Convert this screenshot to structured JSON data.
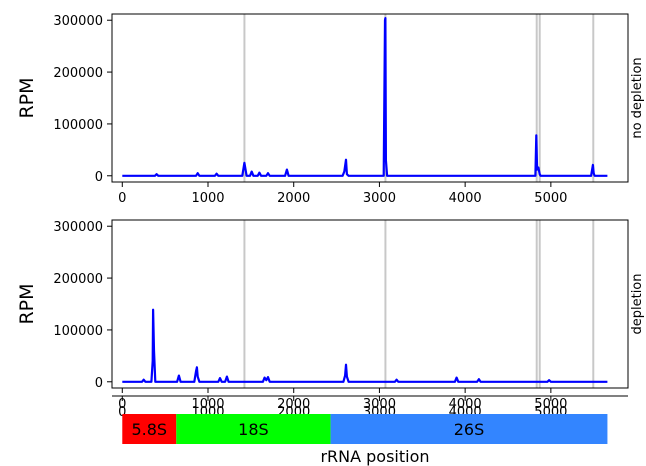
{
  "chart_data": [
    {
      "type": "line",
      "side_label": "no depletion",
      "ylabel": "RPM",
      "xlabel": "",
      "xlim": [
        -120,
        5900
      ],
      "ylim": [
        -12000,
        312000
      ],
      "xticks": [
        0,
        1000,
        2000,
        3000,
        4000,
        5000
      ],
      "yticks": [
        0,
        100000,
        200000,
        300000
      ],
      "grid": false,
      "series_color": "#0000ff",
      "vline_color": "#c8c8c8",
      "vlines": [
        1425,
        3070,
        4835,
        4870,
        5495
      ],
      "series": [
        {
          "x": [
            0,
            380,
            400,
            420,
            860,
            880,
            900,
            1080,
            1100,
            1120,
            1400,
            1425,
            1450,
            1490,
            1510,
            1530,
            1580,
            1600,
            1620,
            1680,
            1700,
            1720,
            1900,
            1920,
            1940,
            2570,
            2590,
            2610,
            2620,
            2640,
            3050,
            3065,
            3070,
            3075,
            3090,
            4820,
            4830,
            4840,
            4855,
            4870,
            4880,
            5470,
            5490,
            5500,
            5510,
            5660
          ],
          "y": [
            0,
            0,
            3000,
            0,
            0,
            5000,
            0,
            0,
            4000,
            0,
            0,
            25000,
            0,
            0,
            8000,
            0,
            0,
            6000,
            0,
            0,
            5000,
            0,
            0,
            12000,
            0,
            0,
            8000,
            31000,
            3000,
            0,
            0,
            300000,
            304000,
            30000,
            0,
            0,
            78000,
            12000,
            16000,
            3000,
            0,
            0,
            21000,
            5000,
            0,
            0
          ]
        }
      ]
    },
    {
      "type": "line",
      "side_label": "depletion",
      "ylabel": "RPM",
      "xlabel": "",
      "xlim": [
        -120,
        5900
      ],
      "ylim": [
        -12000,
        312000
      ],
      "xticks": [
        0,
        1000,
        2000,
        3000,
        4000,
        5000
      ],
      "yticks": [
        0,
        100000,
        200000,
        300000
      ],
      "grid": false,
      "series_color": "#0000ff",
      "vline_color": "#c8c8c8",
      "vlines": [
        1425,
        3070,
        4835,
        4870,
        5495
      ],
      "series": [
        {
          "x": [
            0,
            230,
            250,
            270,
            340,
            355,
            360,
            370,
            385,
            640,
            660,
            680,
            840,
            860,
            870,
            880,
            900,
            1120,
            1140,
            1160,
            1200,
            1220,
            1240,
            1640,
            1660,
            1680,
            1700,
            1720,
            2580,
            2600,
            2610,
            2620,
            2640,
            3180,
            3200,
            3220,
            3880,
            3900,
            3920,
            4140,
            4160,
            4180,
            4960,
            4980,
            5000,
            5660
          ],
          "y": [
            0,
            0,
            4000,
            0,
            0,
            40000,
            139000,
            60000,
            0,
            0,
            12000,
            0,
            0,
            20000,
            28000,
            10000,
            0,
            0,
            7000,
            0,
            0,
            10000,
            0,
            0,
            8000,
            3000,
            9000,
            0,
            0,
            12000,
            33000,
            10000,
            0,
            0,
            4000,
            0,
            0,
            8000,
            0,
            0,
            5000,
            0,
            0,
            3000,
            0,
            0
          ]
        }
      ]
    }
  ],
  "annotation_bar": {
    "xlabel": "rRNA position",
    "xticks": [
      0,
      1000,
      2000,
      3000,
      4000,
      5000
    ],
    "segments": [
      {
        "label": "5.8S",
        "start": 0,
        "end": 630,
        "color": "#ff0000"
      },
      {
        "label": "18S",
        "start": 630,
        "end": 2430,
        "color": "#00ff00"
      },
      {
        "label": "26S",
        "start": 2430,
        "end": 5660,
        "color": "#3385ff"
      }
    ]
  }
}
